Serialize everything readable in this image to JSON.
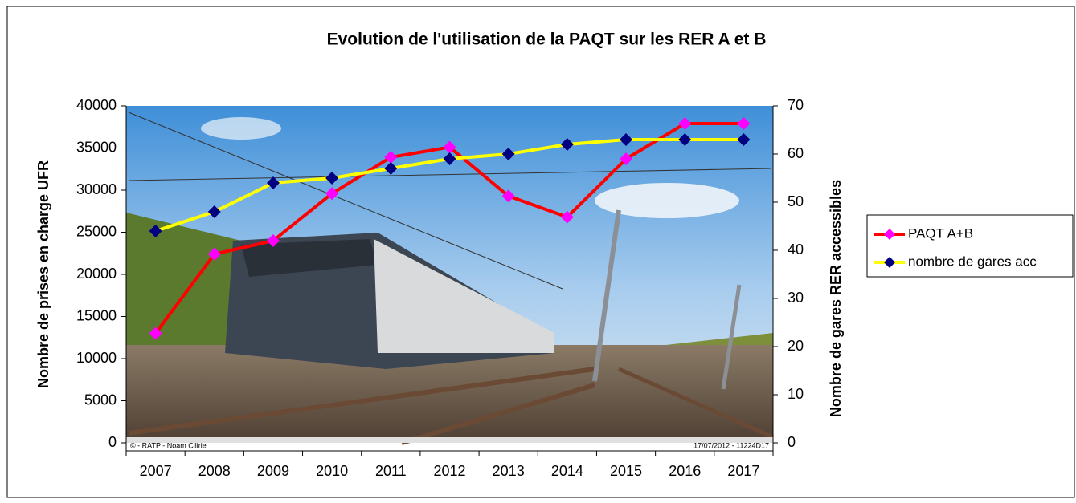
{
  "chart_data": {
    "type": "line",
    "title": "Evolution de l'utilisation de la PAQT sur les RER A et B",
    "categories": [
      "2007",
      "2008",
      "2009",
      "2010",
      "2011",
      "2012",
      "2013",
      "2014",
      "2015",
      "2016",
      "2017"
    ],
    "series": [
      {
        "name": "PAQT A+B",
        "color": "#ff0000",
        "marker_color": "#ff00ff",
        "values": [
          13000,
          22400,
          24000,
          29600,
          33900,
          35100,
          29300,
          26800,
          33700,
          37900,
          37900
        ]
      },
      {
        "name": "nombre de gares acc",
        "color": "#ffff00",
        "marker_color": "#000080",
        "axis": "y2",
        "values": [
          44,
          48,
          54,
          55,
          57,
          59,
          60,
          62,
          63,
          63,
          63
        ]
      }
    ],
    "ylabel": "Nombre de prises en charge UFR",
    "y2label": "Nombre de gares RER accessibles",
    "ylim": [
      0,
      40000
    ],
    "yticks": [
      0,
      5000,
      10000,
      15000,
      20000,
      25000,
      30000,
      35000,
      40000
    ],
    "y2lim": [
      0,
      70
    ],
    "y2ticks": [
      0,
      10,
      20,
      30,
      40,
      50,
      60,
      70
    ],
    "legend": "right",
    "annotations": [
      "© - RATP - Noam Cilirie",
      "17/07/2012 - 11224D17"
    ]
  }
}
